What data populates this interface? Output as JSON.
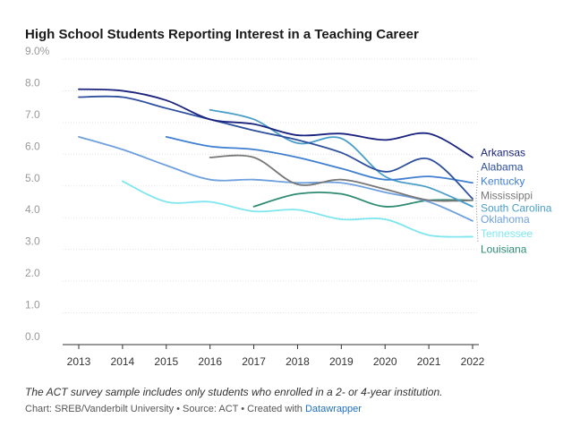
{
  "header": {
    "title": "High School Students Reporting Interest in a Teaching Career"
  },
  "footer": {
    "note": "The ACT survey sample includes only students who enrolled in a 2- or 4-year institution.",
    "credit_prefix": "Chart: SREB/Vanderbilt University • Source: ACT • Created with ",
    "credit_link": "Datawrapper"
  },
  "chart_data": {
    "type": "line",
    "title": "High School Students Reporting Interest in a Teaching Career",
    "xlabel": "",
    "ylabel": "",
    "x": [
      2013,
      2014,
      2015,
      2016,
      2017,
      2018,
      2019,
      2020,
      2021,
      2022
    ],
    "ylim": [
      0,
      9
    ],
    "yticks": [
      0,
      1,
      2,
      3,
      4,
      5,
      6,
      7,
      8,
      9
    ],
    "ytick_labels": [
      "0.0",
      "1.0",
      "2.0",
      "3.0",
      "4.0",
      "5.0",
      "6.0",
      "7.0",
      "8.0",
      "9.0%"
    ],
    "legend": "direct labels at right end of lines",
    "series": [
      {
        "name": "Arkansas",
        "color": "#1a237e",
        "label_value": 6.05,
        "values": [
          8.05,
          8.0,
          7.7,
          7.1,
          6.95,
          6.6,
          6.65,
          6.45,
          6.65,
          5.9
        ]
      },
      {
        "name": "Alabama",
        "color": "#2d4f9e",
        "label_value": 5.6,
        "values": [
          7.8,
          7.8,
          7.45,
          7.1,
          6.75,
          6.45,
          6.05,
          5.45,
          5.85,
          4.6
        ]
      },
      {
        "name": "Kentucky",
        "color": "#3f7fd0",
        "label_value": 5.15,
        "values": [
          null,
          null,
          6.55,
          6.25,
          6.15,
          5.9,
          5.55,
          5.2,
          5.3,
          5.1
        ]
      },
      {
        "name": "Mississippi",
        "color": "#777777",
        "label_value": 4.7,
        "values": [
          null,
          null,
          null,
          5.9,
          5.9,
          5.05,
          5.2,
          4.9,
          4.55,
          4.55
        ]
      },
      {
        "name": "South Carolina",
        "color": "#4a9ec9",
        "label_value": 4.3,
        "values": [
          null,
          null,
          null,
          7.4,
          7.1,
          6.35,
          6.5,
          5.3,
          4.95,
          4.35
        ]
      },
      {
        "name": "Oklahoma",
        "color": "#6fa0de",
        "label_value": 3.95,
        "values": [
          6.55,
          6.15,
          5.65,
          5.2,
          5.2,
          5.1,
          5.1,
          4.8,
          4.5,
          3.9
        ]
      },
      {
        "name": "Tennessee",
        "color": "#7ee6ef",
        "label_value": 3.5,
        "values": [
          null,
          5.15,
          4.5,
          4.5,
          4.2,
          4.25,
          3.95,
          3.95,
          3.45,
          3.4
        ]
      },
      {
        "name": "Louisiana",
        "color": "#2e8b72",
        "label_value": 3.0,
        "values": [
          null,
          null,
          null,
          null,
          4.35,
          4.75,
          4.75,
          4.35,
          4.55,
          4.55
        ]
      }
    ]
  }
}
